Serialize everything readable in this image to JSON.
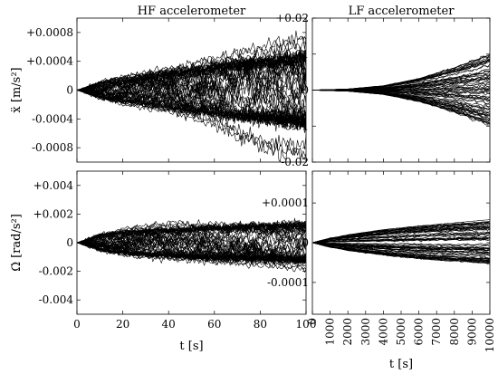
{
  "chart_data": [
    {
      "id": "hf-acc",
      "type": "line",
      "title": "HF accelerometer",
      "ylabel": "ẍ [m/s²]",
      "xlabel": "",
      "xlim": [
        0,
        100
      ],
      "ylim": [
        -0.001,
        0.001
      ],
      "xticks": [
        0,
        20,
        40,
        60,
        80,
        100
      ],
      "xtick_labels": [
        "0",
        "20",
        "40",
        "60",
        "80",
        "100"
      ],
      "show_xtick_labels": false,
      "yticks": [
        0.0008,
        0.0004,
        0,
        -0.0004,
        -0.0008
      ],
      "ytick_labels": [
        "+0.0008",
        "+0.0004",
        "0",
        "-0.0004",
        "-0.0008"
      ],
      "envelope": {
        "x": [
          0,
          10,
          30,
          50,
          70,
          90,
          100
        ],
        "y": [
          0,
          0.00012,
          0.0002,
          0.00028,
          0.00036,
          0.00042,
          0.00046
        ]
      },
      "outliers": {
        "x": [
          0,
          20,
          40,
          60,
          80,
          100
        ],
        "upper": [
          0,
          0.0002,
          0.0003,
          0.00045,
          0.0006,
          0.00075
        ],
        "lower": [
          0,
          -0.0002,
          -0.0003,
          -0.0005,
          -0.0008,
          -0.00095
        ]
      },
      "style": "random-walk"
    },
    {
      "id": "lf-acc",
      "type": "line",
      "title": "LF accelerometer",
      "ylabel": "",
      "xlabel": "",
      "xlim": [
        0,
        10000
      ],
      "ylim": [
        -0.02,
        0.02
      ],
      "xticks": [
        0,
        1000,
        2000,
        3000,
        4000,
        5000,
        6000,
        7000,
        8000,
        9000,
        10000
      ],
      "xtick_labels": [
        "0",
        "1000",
        "2000",
        "3000",
        "4000",
        "5000",
        "6000",
        "7000",
        "8000",
        "9000",
        "10000"
      ],
      "show_xtick_labels": false,
      "yticks": [
        0.02,
        0.01,
        0,
        -0.01,
        -0.02
      ],
      "ytick_labels": [
        "+0.02",
        "+0.01",
        "0",
        "-0.01",
        "-0.02"
      ],
      "envelope": {
        "x": [
          0,
          2000,
          4000,
          6000,
          8000,
          10000
        ],
        "y": [
          0,
          0.0003,
          0.0012,
          0.0032,
          0.0062,
          0.0098
        ]
      },
      "outliers": {
        "x": [
          0,
          2000,
          4000,
          6000,
          8000,
          10000
        ],
        "upper": [
          0,
          0.0003,
          0.0012,
          0.0032,
          0.0062,
          0.0098
        ],
        "lower": [
          0,
          -0.0003,
          -0.0012,
          -0.003,
          -0.0058,
          -0.0085
        ]
      },
      "style": "smooth"
    },
    {
      "id": "hf-gyro",
      "type": "line",
      "title": "",
      "ylabel": "Ω̇ [rad/s²]",
      "xlabel": "t [s]",
      "xlim": [
        0,
        100
      ],
      "ylim": [
        -0.005,
        0.005
      ],
      "xticks": [
        0,
        20,
        40,
        60,
        80,
        100
      ],
      "xtick_labels": [
        "0",
        "20",
        "40",
        "60",
        "80",
        "100"
      ],
      "show_xtick_labels": true,
      "yticks": [
        0.004,
        0.002,
        0,
        -0.002,
        -0.004
      ],
      "ytick_labels": [
        "+0.004",
        "+0.002",
        "0",
        "-0.002",
        "-0.004"
      ],
      "envelope": {
        "x": [
          0,
          10,
          30,
          50,
          70,
          100
        ],
        "y": [
          0,
          0.0006,
          0.00085,
          0.001,
          0.0011,
          0.0012
        ]
      },
      "outliers": {
        "x": [
          0,
          20,
          40,
          60,
          80,
          100
        ],
        "upper": [
          0,
          0.001,
          0.0014,
          0.0013,
          0.0013,
          0.0014
        ],
        "lower": [
          0,
          -0.0009,
          -0.0012,
          -0.0014,
          -0.0016,
          -0.0019
        ]
      },
      "style": "random-walk"
    },
    {
      "id": "lf-gyro",
      "type": "line",
      "title": "",
      "ylabel": "",
      "xlabel": "t [s]",
      "xlim": [
        0,
        10000
      ],
      "ylim": [
        -0.00018,
        0.00018
      ],
      "xticks": [
        0,
        1000,
        2000,
        3000,
        4000,
        5000,
        6000,
        7000,
        8000,
        9000,
        10000
      ],
      "xtick_labels": [
        "0",
        "1000",
        "2000",
        "3000",
        "4000",
        "5000",
        "6000",
        "7000",
        "8000",
        "9000",
        "10000"
      ],
      "show_xtick_labels": true,
      "xtick_rotation": -90,
      "yticks": [
        0.0001,
        0,
        -0.0001
      ],
      "ytick_labels": [
        "+0.0001",
        "0",
        "-0.0001"
      ],
      "envelope": {
        "x": [
          0,
          1000,
          3000,
          5000,
          7000,
          10000
        ],
        "y": [
          0,
          1.2e-05,
          2.6e-05,
          3.7e-05,
          4.5e-05,
          5.3e-05
        ]
      },
      "outliers": {
        "x": [
          0,
          2000,
          4000,
          6000,
          8000,
          10000
        ],
        "upper": [
          0,
          2e-05,
          3.3e-05,
          4.2e-05,
          5e-05,
          5.8e-05
        ],
        "lower": [
          0,
          -2e-05,
          -3e-05,
          -3.8e-05,
          -4.2e-05,
          -4.8e-05
        ]
      },
      "style": "smooth"
    }
  ]
}
